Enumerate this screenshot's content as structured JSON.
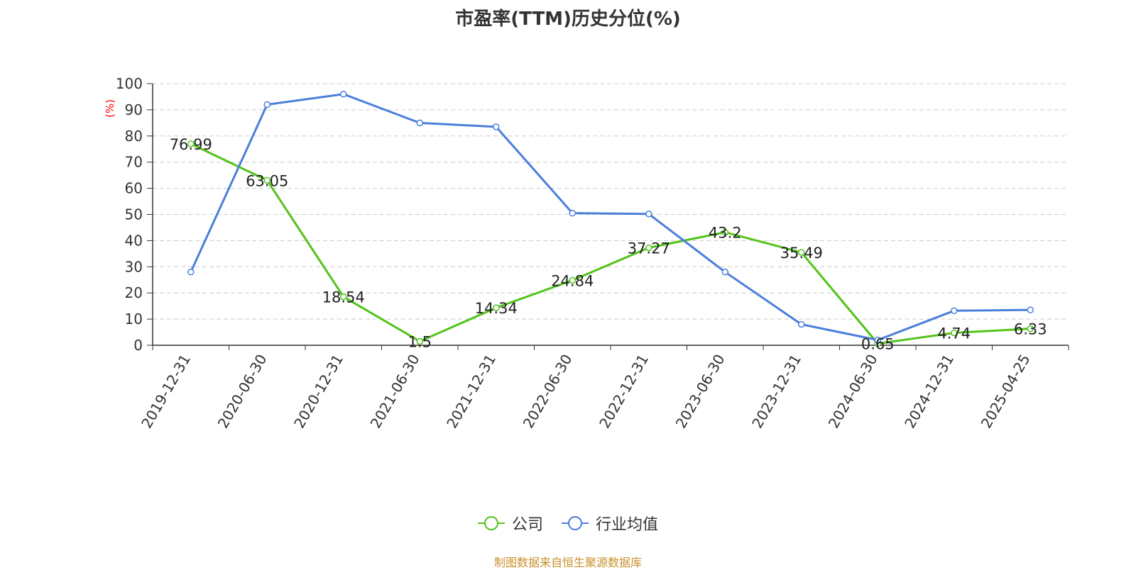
{
  "title": "市盈率(TTM)历史分位(%)",
  "footer": "制图数据来自恒生聚源数据库",
  "colors": {
    "company": "#52c41a",
    "industry": "#4a7fdc",
    "unit": "#ff0000",
    "footer": "#c8902a"
  },
  "chart_data": {
    "type": "line",
    "title": "市盈率(TTM)历史分位(%)",
    "xlabel": "",
    "ylabel": "(%)",
    "ylim": [
      0,
      100
    ],
    "yticks": [
      0,
      10,
      20,
      30,
      40,
      50,
      60,
      70,
      80,
      90,
      100
    ],
    "grid": true,
    "legend_position": "bottom",
    "categories": [
      "2019-12-31",
      "2020-06-30",
      "2020-12-31",
      "2021-06-30",
      "2021-12-31",
      "2022-06-30",
      "2022-12-31",
      "2023-06-30",
      "2023-12-31",
      "2024-06-30",
      "2024-12-31",
      "2025-04-25"
    ],
    "series": [
      {
        "name": "公司",
        "values": [
          76.99,
          63.05,
          18.54,
          1.5,
          14.34,
          24.84,
          37.27,
          43.2,
          35.49,
          0.65,
          4.74,
          6.33
        ],
        "labels": [
          "76.99",
          "63.05",
          "18.54",
          "1.5",
          "14.34",
          "24.84",
          "37.27",
          "43.2",
          "35.49",
          "0.65",
          "4.74",
          "6.33"
        ]
      },
      {
        "name": "行业均值",
        "values": [
          28,
          92,
          96,
          85,
          83.5,
          50.5,
          50.2,
          28,
          8,
          2,
          13.2,
          13.5
        ]
      }
    ]
  }
}
